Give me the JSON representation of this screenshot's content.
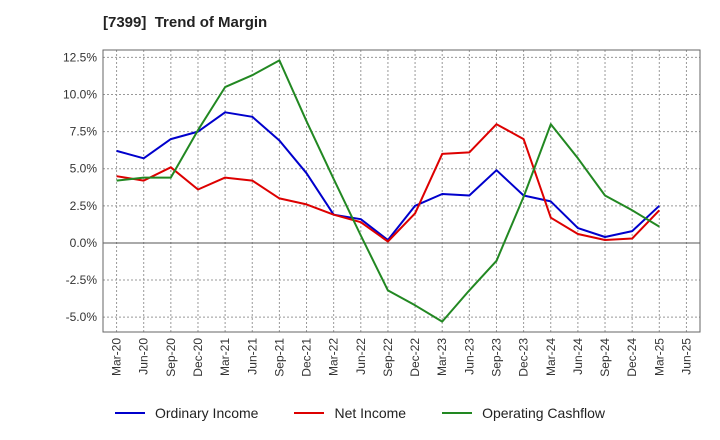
{
  "chart_data": {
    "type": "line",
    "title": "[7399]  Trend of Margin",
    "x": [
      "Mar-20",
      "Jun-20",
      "Sep-20",
      "Dec-20",
      "Mar-21",
      "Jun-21",
      "Sep-21",
      "Dec-21",
      "Mar-22",
      "Jun-22",
      "Sep-22",
      "Dec-22",
      "Mar-23",
      "Jun-23",
      "Sep-23",
      "Dec-23",
      "Mar-24",
      "Jun-24",
      "Sep-24",
      "Dec-24",
      "Mar-25",
      "Jun-25"
    ],
    "yticks": [
      "12.5%",
      "10.0%",
      "7.5%",
      "5.0%",
      "2.5%",
      "0.0%",
      "-2.5%",
      "-5.0%"
    ],
    "ylim": [
      -6.0,
      13.0
    ],
    "ytick_values": [
      12.5,
      10.0,
      7.5,
      5.0,
      2.5,
      0.0,
      -2.5,
      -5.0
    ],
    "grid": true,
    "legend_position": "bottom",
    "series": [
      {
        "name": "Ordinary Income",
        "color": "#0000cc",
        "values": [
          6.2,
          5.7,
          7.0,
          7.5,
          8.8,
          8.5,
          6.9,
          4.7,
          1.9,
          1.6,
          0.2,
          2.5,
          3.3,
          3.2,
          4.9,
          3.2,
          2.8,
          1.0,
          0.4,
          0.8,
          2.5,
          null
        ]
      },
      {
        "name": "Net Income",
        "color": "#dd0000",
        "values": [
          4.5,
          4.2,
          5.1,
          3.6,
          4.4,
          4.2,
          3.0,
          2.6,
          1.9,
          1.4,
          0.1,
          2.0,
          6.0,
          6.1,
          8.0,
          7.0,
          1.7,
          0.6,
          0.2,
          0.3,
          2.2,
          null
        ]
      },
      {
        "name": "Operating Cashflow",
        "color": "#228822",
        "values": [
          4.2,
          4.4,
          4.4,
          7.6,
          10.5,
          11.3,
          12.3,
          8.2,
          4.3,
          0.5,
          -3.2,
          -4.2,
          -5.3,
          -3.2,
          -1.2,
          3.1,
          8.0,
          5.7,
          3.2,
          2.2,
          1.1,
          null
        ]
      }
    ]
  }
}
